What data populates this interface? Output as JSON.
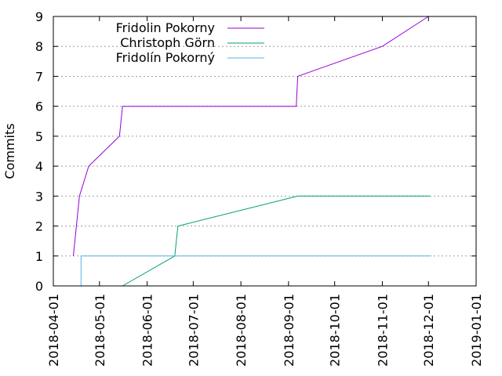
{
  "chart_data": {
    "type": "line",
    "title": "",
    "xlabel": "",
    "ylabel": "Commits",
    "xlim": [
      "2018-04-01",
      "2019-01-01"
    ],
    "ylim": [
      0,
      9
    ],
    "x_ticks": [
      "2018-04-01",
      "2018-05-01",
      "2018-06-01",
      "2018-07-01",
      "2018-08-01",
      "2018-09-01",
      "2018-10-01",
      "2018-11-01",
      "2018-12-01",
      "2019-01-01"
    ],
    "y_ticks": [
      0,
      1,
      2,
      3,
      4,
      5,
      6,
      7,
      8,
      9
    ],
    "grid": "horizontal dotted",
    "legend_position": "top-left",
    "series": [
      {
        "name": "Fridolin Pokorny",
        "color": "#9400d3",
        "points": [
          [
            "2018-04-14",
            1
          ],
          [
            "2018-04-18",
            3
          ],
          [
            "2018-04-24",
            4
          ],
          [
            "2018-05-14",
            5
          ],
          [
            "2018-05-16",
            6
          ],
          [
            "2018-09-06",
            6
          ],
          [
            "2018-09-07",
            7
          ],
          [
            "2018-11-01",
            8
          ],
          [
            "2018-12-01",
            9
          ]
        ]
      },
      {
        "name": "Christoph Görn",
        "color": "#009e73",
        "points": [
          [
            "2018-05-16",
            0
          ],
          [
            "2018-06-19",
            1
          ],
          [
            "2018-06-21",
            2
          ],
          [
            "2018-09-07",
            3
          ],
          [
            "2018-12-02",
            3
          ]
        ]
      },
      {
        "name": "Fridolín Pokorný",
        "color": "#56b4e9",
        "points": [
          [
            "2018-04-19",
            0
          ],
          [
            "2018-04-19",
            1
          ],
          [
            "2018-12-02",
            1
          ]
        ]
      }
    ]
  }
}
